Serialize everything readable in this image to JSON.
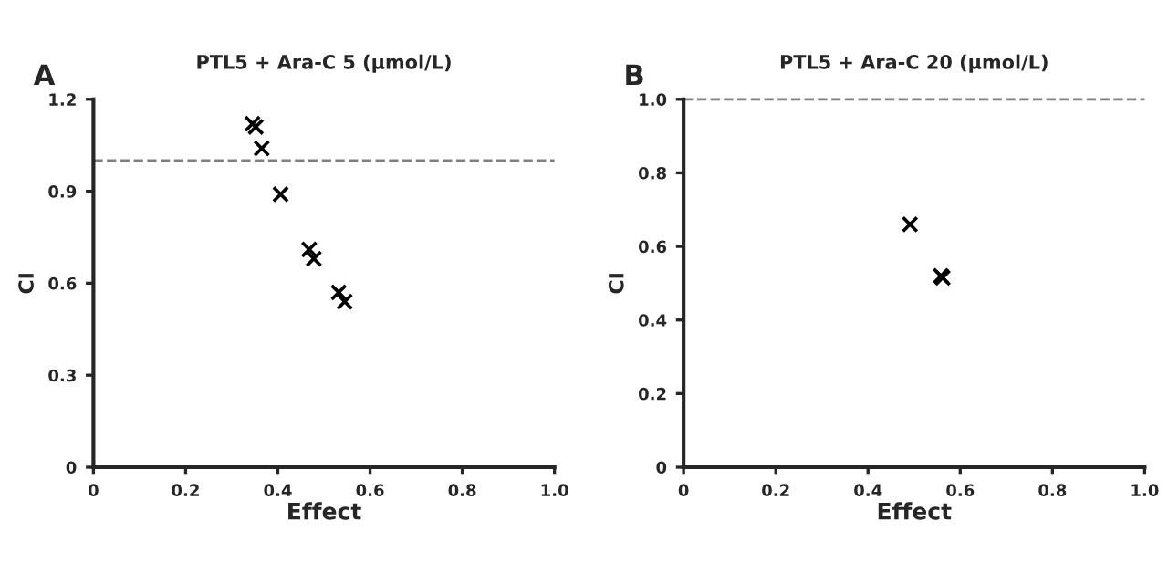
{
  "chart_data": [
    {
      "type": "scatter",
      "title": "PTL5 + Ara-C 5 (μmol/L)",
      "xlabel": "Effect",
      "ylabel": "CI",
      "annotations": [
        "A"
      ],
      "series": [
        {
          "color": "#000000",
          "x": [
            0.345,
            0.352,
            0.365,
            0.406,
            0.468,
            0.478,
            0.532,
            0.545
          ],
          "values": [
            1.12,
            1.11,
            1.04,
            0.89,
            0.71,
            0.68,
            0.57,
            0.54
          ]
        }
      ],
      "marker": "cross",
      "xlim": [
        0,
        1.0
      ],
      "ylim": [
        0,
        1.2
      ],
      "xticks": [
        0,
        0.2,
        0.4,
        0.6,
        0.8,
        {
          "value": 1.0,
          "label": "1.0"
        }
      ],
      "yticks": [
        0,
        0.3,
        0.6,
        0.9,
        1.2
      ],
      "ref_lines": [
        {
          "axis": "y",
          "value": 1.0,
          "color": "#808080",
          "line_style": "dashed"
        }
      ],
      "grid": false
    },
    {
      "type": "scatter",
      "title": "PTL5 + Ara-C 20 (μmol/L)",
      "xlabel": "Effect",
      "ylabel": "CI",
      "annotations": [
        "B"
      ],
      "series": [
        {
          "color": "#000000",
          "x": [
            0.491,
            0.558,
            0.562
          ],
          "values": [
            0.66,
            0.52,
            0.515
          ]
        }
      ],
      "marker": "cross",
      "xlim": [
        0,
        1.0
      ],
      "ylim": [
        0,
        1.0
      ],
      "xticks": [
        0,
        0.2,
        0.4,
        0.6,
        0.8,
        {
          "value": 1.0,
          "label": "1.0"
        }
      ],
      "yticks": [
        0,
        0.2,
        0.4,
        0.6,
        0.8,
        {
          "value": 1.0,
          "label": "1.0"
        }
      ],
      "ref_lines": [
        {
          "axis": "y",
          "value": 1.0,
          "color": "#808080",
          "line_style": "dashed"
        }
      ],
      "grid": false
    }
  ]
}
